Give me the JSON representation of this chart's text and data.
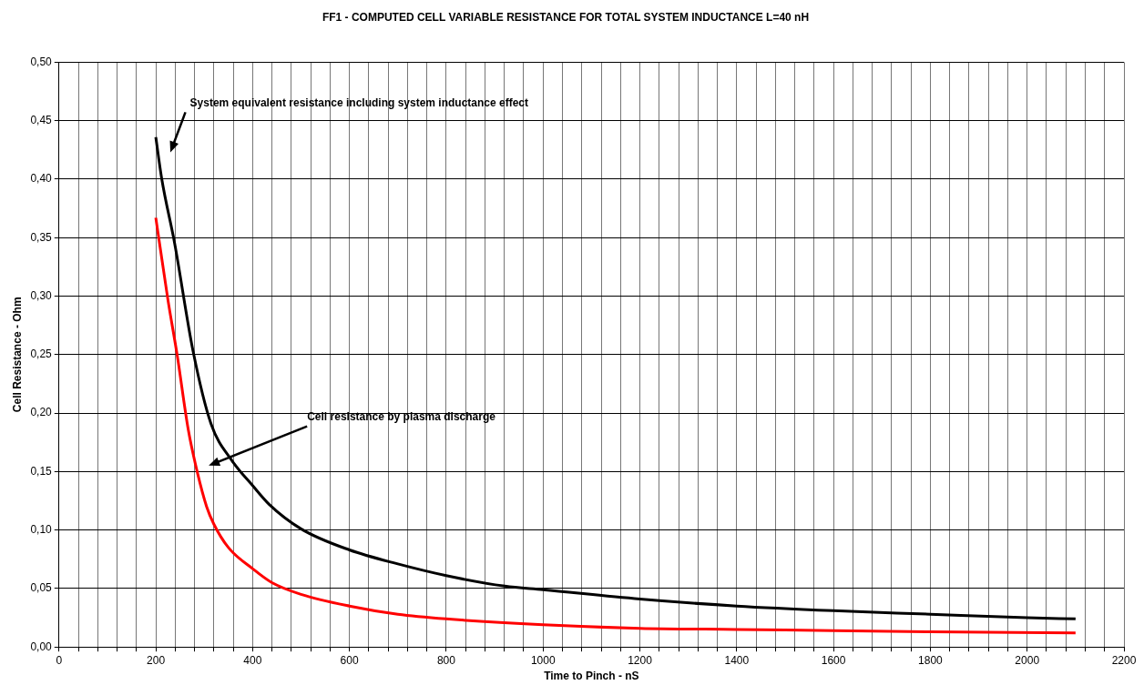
{
  "chart_data": {
    "type": "line",
    "title": "FF1 - COMPUTED CELL VARIABLE RESISTANCE FOR TOTAL SYSTEM INDUCTANCE L=40 nH",
    "xlabel": "Time to Pinch - nS",
    "ylabel": "Cell Resistance - Ohm",
    "series": [
      {
        "color": "#000000",
        "x": [
          200,
          212,
          239,
          277,
          314,
          358,
          400,
          434,
          500,
          600,
          700,
          800,
          921,
          1000,
          1200,
          1400,
          1600,
          1800,
          2000,
          2100
        ],
        "values": [
          0.436,
          0.401,
          0.345,
          0.253,
          0.191,
          0.159,
          0.138,
          0.122,
          0.101,
          0.083,
          0.071,
          0.061,
          0.052,
          0.049,
          0.041,
          0.035,
          0.031,
          0.028,
          0.025,
          0.024
        ]
      },
      {
        "color": "#ff0000",
        "x": [
          200,
          225,
          244,
          267,
          286,
          305,
          320,
          350,
          400,
          440,
          500,
          600,
          700,
          800,
          1000,
          1200,
          1400,
          1600,
          1800,
          2100
        ],
        "values": [
          0.367,
          0.297,
          0.25,
          0.186,
          0.149,
          0.12,
          0.105,
          0.085,
          0.067,
          0.055,
          0.045,
          0.035,
          0.028,
          0.024,
          0.019,
          0.016,
          0.015,
          0.014,
          0.013,
          0.012
        ]
      }
    ],
    "annotations": [
      "System equivalent resistance including system inductance effect",
      "Cell resistance by plasma discharge"
    ],
    "xlim": [
      0,
      2200
    ],
    "xticks": [
      0,
      {
        "value": 40,
        "label": null
      },
      {
        "value": 80,
        "label": null
      },
      {
        "value": 120,
        "label": null
      },
      {
        "value": 160,
        "label": null
      },
      200,
      {
        "value": 240,
        "label": null
      },
      {
        "value": 280,
        "label": null
      },
      {
        "value": 320,
        "label": null
      },
      {
        "value": 360,
        "label": null
      },
      400,
      {
        "value": 440,
        "label": null
      },
      {
        "value": 480,
        "label": null
      },
      {
        "value": 520,
        "label": null
      },
      {
        "value": 560,
        "label": null
      },
      600,
      {
        "value": 640,
        "label": null
      },
      {
        "value": 680,
        "label": null
      },
      {
        "value": 720,
        "label": null
      },
      {
        "value": 760,
        "label": null
      },
      800,
      {
        "value": 840,
        "label": null
      },
      {
        "value": 880,
        "label": null
      },
      {
        "value": 920,
        "label": null
      },
      {
        "value": 960,
        "label": null
      },
      1000,
      {
        "value": 1040,
        "label": null
      },
      {
        "value": 1080,
        "label": null
      },
      {
        "value": 1120,
        "label": null
      },
      {
        "value": 1160,
        "label": null
      },
      1200,
      {
        "value": 1240,
        "label": null
      },
      {
        "value": 1280,
        "label": null
      },
      {
        "value": 1320,
        "label": null
      },
      {
        "value": 1360,
        "label": null
      },
      1400,
      {
        "value": 1440,
        "label": null
      },
      {
        "value": 1480,
        "label": null
      },
      {
        "value": 1520,
        "label": null
      },
      {
        "value": 1560,
        "label": null
      },
      1600,
      {
        "value": 1640,
        "label": null
      },
      {
        "value": 1680,
        "label": null
      },
      {
        "value": 1720,
        "label": null
      },
      {
        "value": 1760,
        "label": null
      },
      1800,
      {
        "value": 1840,
        "label": null
      },
      {
        "value": 1880,
        "label": null
      },
      {
        "value": 1920,
        "label": null
      },
      {
        "value": 1960,
        "label": null
      },
      2000,
      {
        "value": 2040,
        "label": null
      },
      {
        "value": 2080,
        "label": null
      },
      {
        "value": 2120,
        "label": null
      },
      {
        "value": 2160,
        "label": null
      },
      2200
    ],
    "ylim": [
      0,
      0.5
    ],
    "yticks": [
      {
        "value": 0,
        "label": "0,00"
      },
      {
        "value": 0.05,
        "label": "0,05"
      },
      {
        "value": 0.1,
        "label": "0,10"
      },
      {
        "value": 0.15,
        "label": "0,15"
      },
      {
        "value": 0.2,
        "label": "0,20"
      },
      {
        "value": 0.25,
        "label": "0,25"
      },
      {
        "value": 0.3,
        "label": "0,30"
      },
      {
        "value": 0.35,
        "label": "0,35"
      },
      {
        "value": 0.4,
        "label": "0,40"
      },
      {
        "value": 0.45,
        "label": "0,45"
      },
      {
        "value": 0.5,
        "label": "0,50"
      }
    ],
    "grid": true,
    "legend": false,
    "marker": "none",
    "line_style": "solid"
  }
}
